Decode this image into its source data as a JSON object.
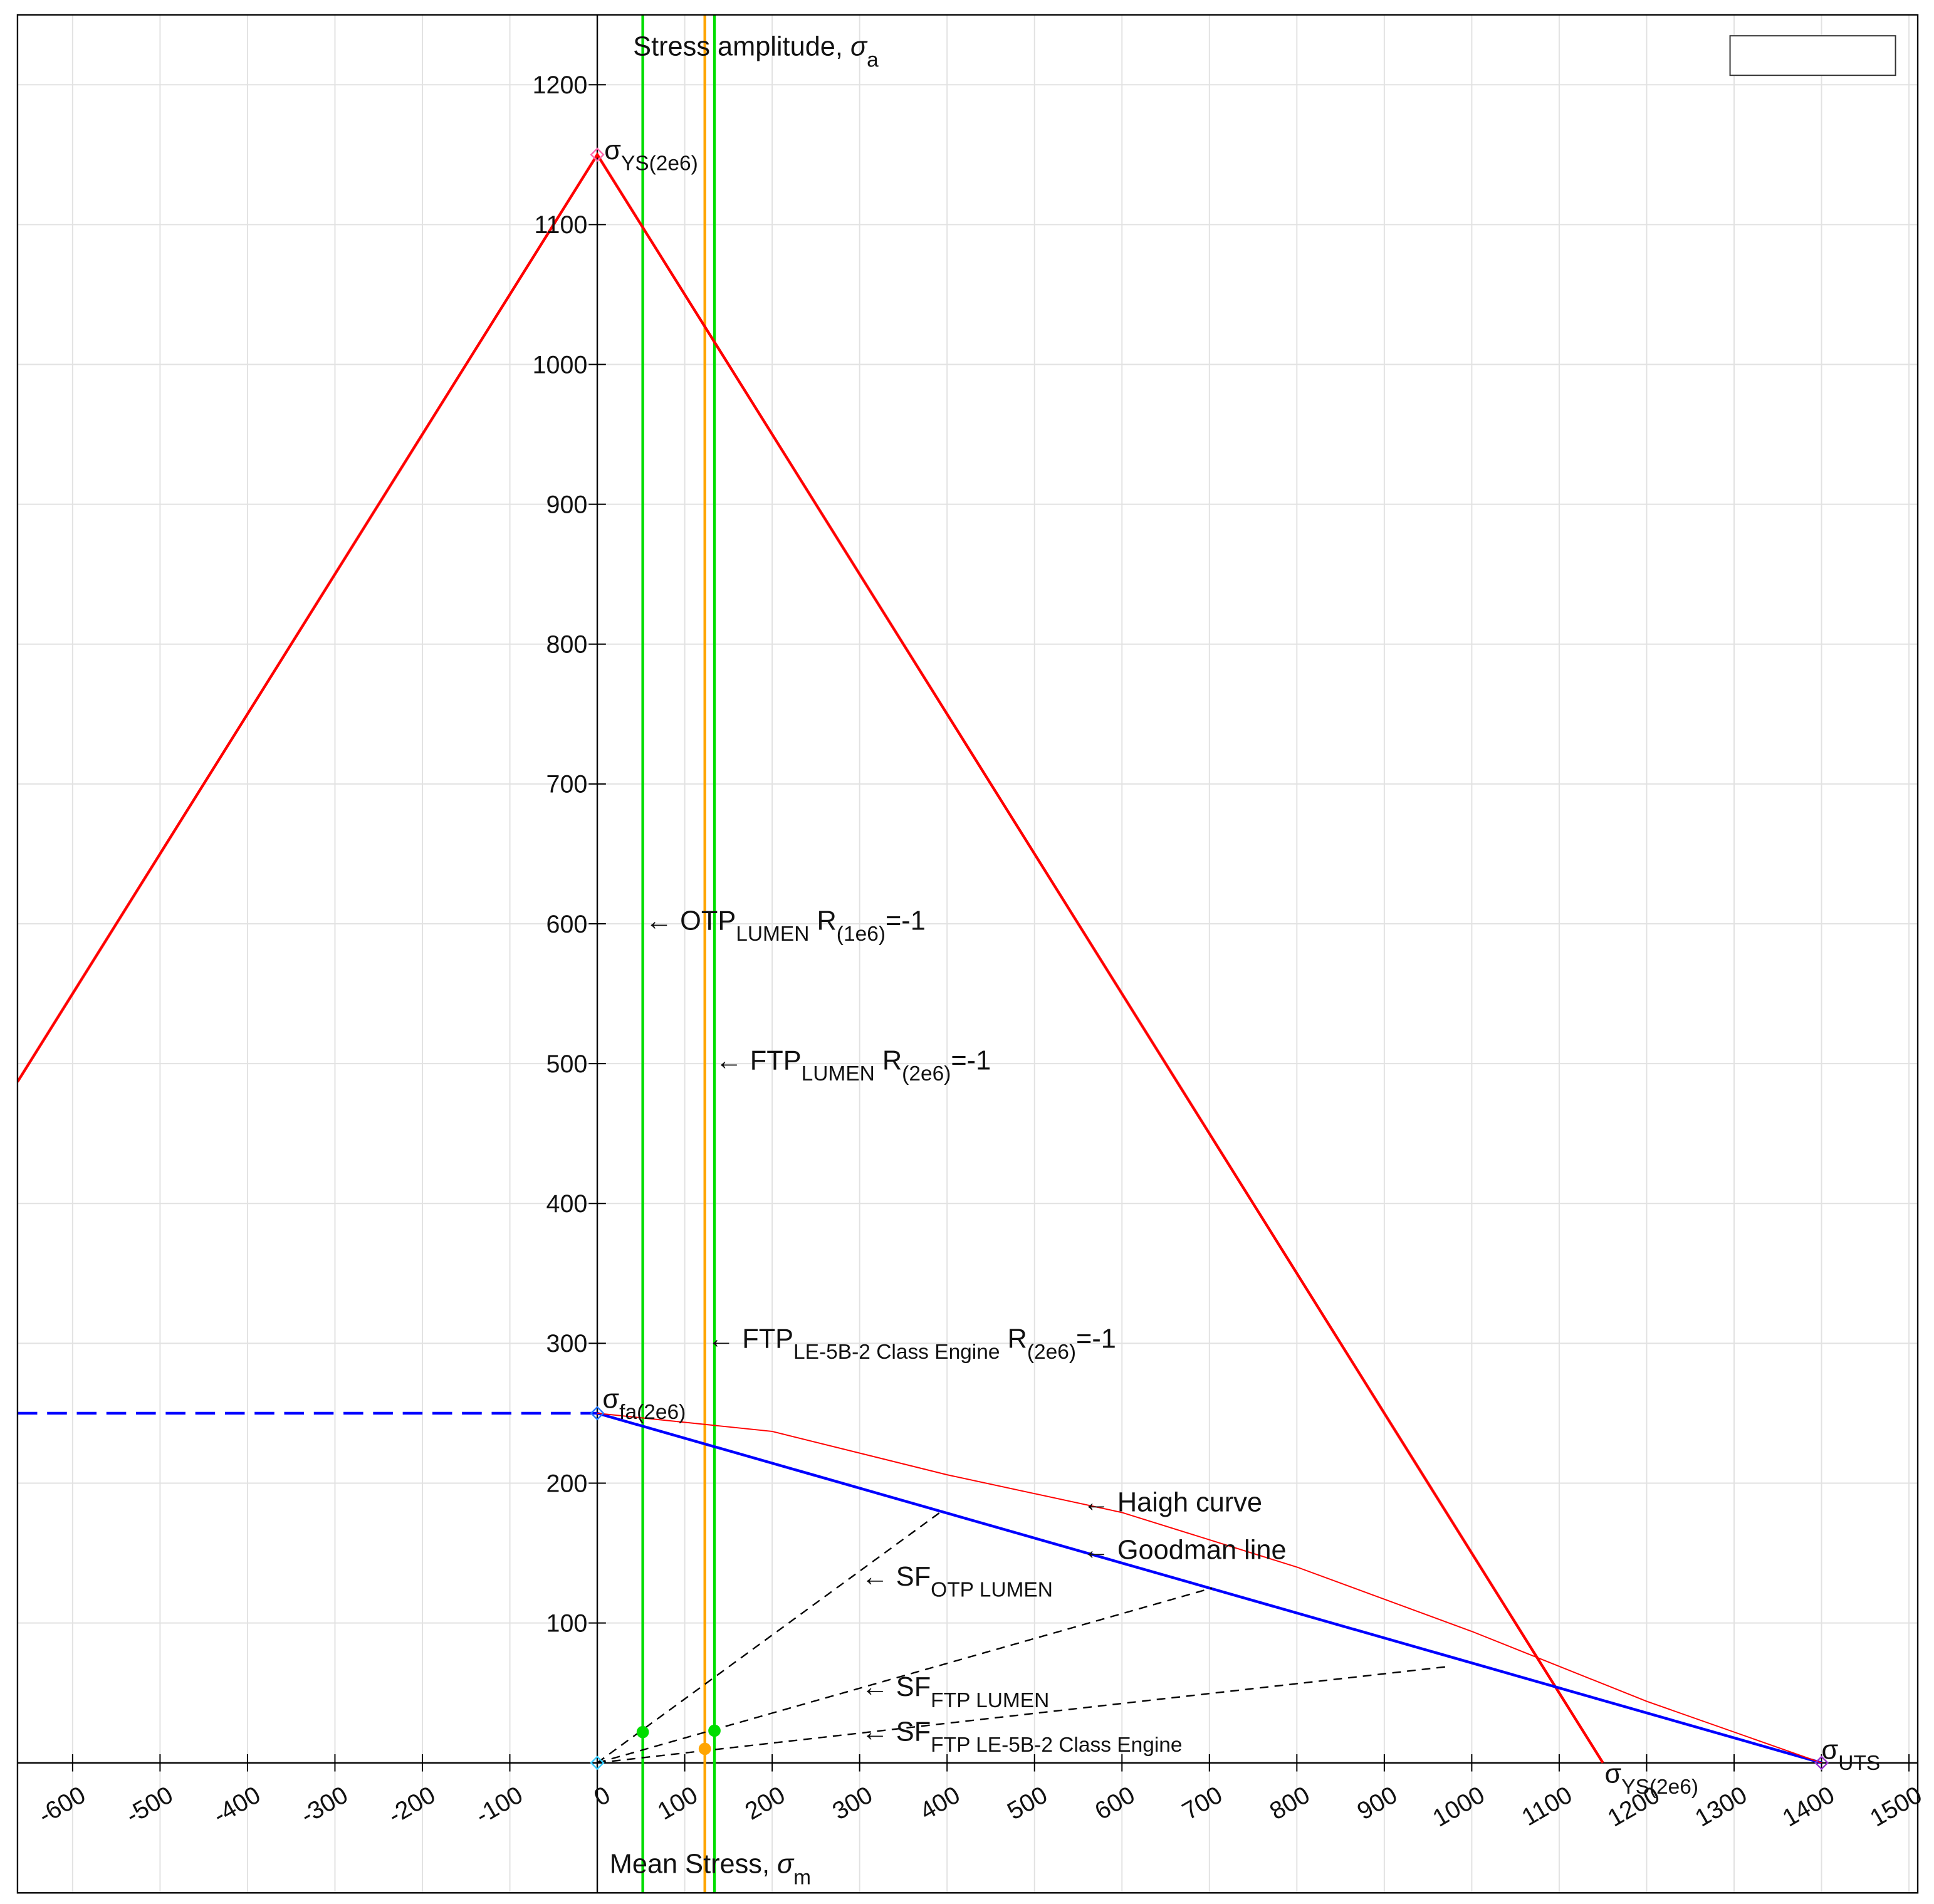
{
  "chart_data": {
    "type": "line",
    "xlim": [
      -663,
      1510
    ],
    "ylim": [
      -93,
      1250
    ],
    "xticks": [
      -600,
      -500,
      -400,
      -300,
      -200,
      -100,
      0,
      100,
      200,
      300,
      400,
      500,
      600,
      700,
      800,
      900,
      1000,
      1100,
      1200,
      1300,
      1400,
      1500
    ],
    "yticks": [
      100,
      200,
      300,
      400,
      500,
      600,
      700,
      800,
      900,
      1000,
      1100,
      1200
    ],
    "grid": true,
    "ylabel": [
      {
        "t": "Stress amplitude, "
      },
      {
        "t": "σ",
        "italic": true
      },
      {
        "t": "a",
        "sub": true
      }
    ],
    "xlabel": [
      {
        "t": "Mean Stress, "
      },
      {
        "t": "σ",
        "italic": true
      },
      {
        "t": "m",
        "sub": true
      }
    ],
    "series": [
      {
        "color": "#ff0000",
        "width": 2.2,
        "x": [
          -663,
          0,
          1150
        ],
        "values": [
          487,
          1150,
          0
        ]
      },
      {
        "color": "#0000ff",
        "width": 2.2,
        "x": [
          0,
          1400
        ],
        "values": [
          250,
          0
        ]
      },
      {
        "color": "#0000ff",
        "width": 2.2,
        "dash": true,
        "x": [
          -663,
          0
        ],
        "values": [
          250,
          250
        ]
      },
      {
        "color": "#ff0000",
        "width": 1,
        "x": [
          0,
          200,
          400,
          600,
          800,
          1000,
          1200,
          1400
        ],
        "values": [
          250,
          237,
          206,
          179,
          140,
          94,
          44,
          0
        ]
      },
      {
        "color": "#000000",
        "width": 1.2,
        "dash": true,
        "x": [
          0,
          394
        ],
        "values": [
          0,
          180
        ]
      },
      {
        "color": "#000000",
        "width": 1.2,
        "dash": true,
        "x": [
          0,
          703
        ],
        "values": [
          0,
          125
        ]
      },
      {
        "color": "#000000",
        "width": 1.2,
        "dash": true,
        "x": [
          0,
          975
        ],
        "values": [
          0,
          69
        ]
      }
    ],
    "xlines": [
      {
        "value": 52,
        "color": "#00dd00"
      },
      {
        "value": 123,
        "color": "#ffa500"
      },
      {
        "value": 134,
        "color": "#00dd00"
      }
    ],
    "points": [
      {
        "x": 52,
        "y": 22,
        "color": "#00dd00"
      },
      {
        "x": 134,
        "y": 23,
        "color": "#00dd00"
      },
      {
        "x": 123,
        "y": 10,
        "color": "#ffa500"
      }
    ],
    "diamonds": [
      {
        "x": 0,
        "y": 1150,
        "color": "#ff66aa"
      },
      {
        "x": 0,
        "y": 250,
        "color": "#2277ff"
      },
      {
        "x": 0,
        "y": 0,
        "color": "#33ccff"
      },
      {
        "x": 1400,
        "y": 0,
        "color": "#9933cc"
      }
    ],
    "annotations": [
      {
        "x": 55,
        "y": 602,
        "parts": [
          {
            "t": "←      OTP"
          },
          {
            "t": "LUMEN",
            "sub": true
          },
          {
            "t": " R"
          },
          {
            "t": "(1e6)",
            "sub": true
          },
          {
            "t": "=-1"
          }
        ]
      },
      {
        "x": 135,
        "y": 502,
        "parts": [
          {
            "t": "← FTP"
          },
          {
            "t": "LUMEN",
            "sub": true
          },
          {
            "t": " R"
          },
          {
            "t": "(2e6)",
            "sub": true
          },
          {
            "t": "=-1"
          }
        ]
      },
      {
        "x": 126,
        "y": 303,
        "parts": [
          {
            "t": "← FTP"
          },
          {
            "t": "LE-5B-2 Class Engine",
            "sub": true
          },
          {
            "t": " R"
          },
          {
            "t": "(2e6)",
            "sub": true
          },
          {
            "t": "=-1"
          }
        ]
      },
      {
        "x": 555,
        "y": 186,
        "parts": [
          {
            "t": "← Haigh curve"
          }
        ]
      },
      {
        "x": 555,
        "y": 152,
        "parts": [
          {
            "t": "← Goodman line"
          }
        ]
      },
      {
        "x": 302,
        "y": 133,
        "parts": [
          {
            "t": "← SF"
          },
          {
            "t": "OTP LUMEN",
            "sub": true
          }
        ]
      },
      {
        "x": 302,
        "y": 54,
        "parts": [
          {
            "t": "← SF"
          },
          {
            "t": "FTP LUMEN",
            "sub": true
          }
        ]
      },
      {
        "x": 302,
        "y": 22,
        "parts": [
          {
            "t": "← SF"
          },
          {
            "t": "FTP LE-5B-2 Class Engine",
            "sub": true
          }
        ]
      },
      {
        "x": 8,
        "y": 1153,
        "parts": [
          {
            "t": "σ"
          },
          {
            "t": "YS(2e6)",
            "sub": true
          }
        ]
      },
      {
        "x": 6,
        "y": 260,
        "parts": [
          {
            "t": "σ"
          },
          {
            "t": "fa(2e6)",
            "sub": true
          }
        ]
      },
      {
        "x": 1152,
        "y": -8,
        "parts": [
          {
            "t": "σ"
          },
          {
            "t": "YS(2e6)",
            "sub": true
          }
        ]
      },
      {
        "x": 1400,
        "y": 9,
        "parts": [
          {
            "t": "σ"
          },
          {
            "t": "UTS",
            "sub": true
          }
        ]
      }
    ]
  }
}
